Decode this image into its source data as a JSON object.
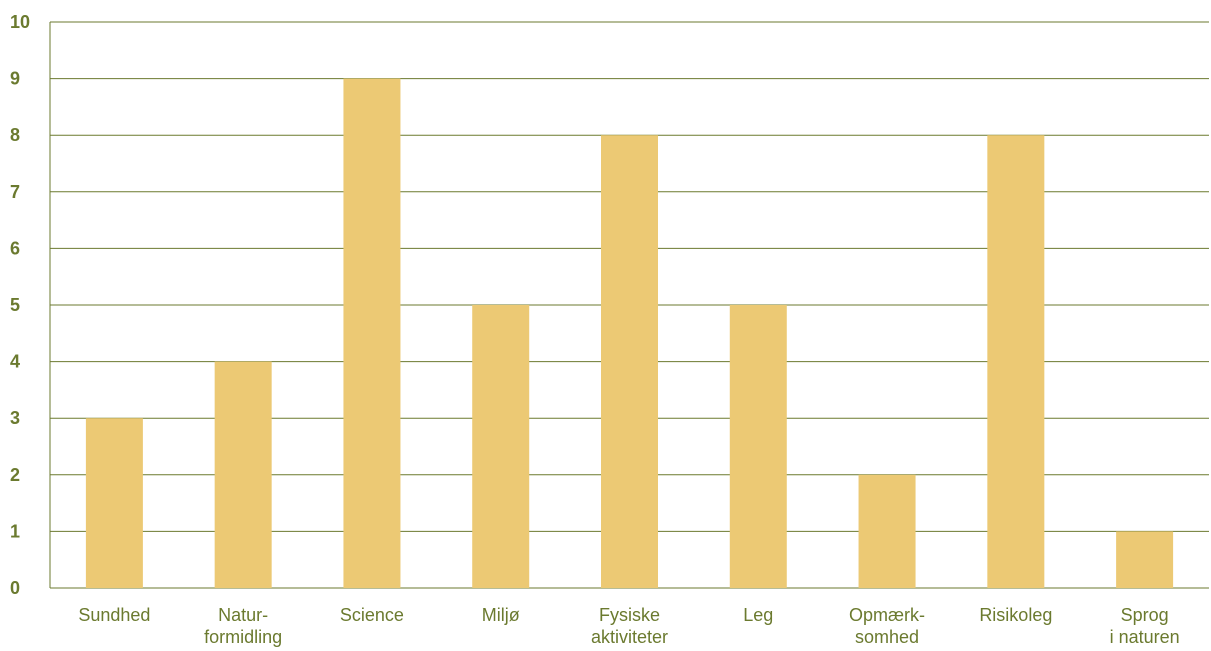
{
  "chart_data": {
    "type": "bar",
    "categories": [
      [
        "Sundhed"
      ],
      [
        "Natur-",
        "formidling"
      ],
      [
        "Science"
      ],
      [
        "Miljø"
      ],
      [
        "Fysiske",
        "aktiviteter"
      ],
      [
        "Leg"
      ],
      [
        "Opmærk-",
        "somhed"
      ],
      [
        "Risikoleg"
      ],
      [
        "Sprog",
        "i naturen"
      ]
    ],
    "values": [
      3,
      4,
      9,
      5,
      8,
      5,
      2,
      8,
      1
    ],
    "yticks": [
      "0",
      "1",
      "2",
      "3",
      "4",
      "5",
      "6",
      "7",
      "8",
      "9",
      "10"
    ],
    "ylim": [
      0,
      10
    ],
    "title": "",
    "xlabel": "",
    "ylabel": "",
    "grid": true,
    "colors": {
      "bar": "#ecc974",
      "grid": "#6b7a2f",
      "text": "#6b7a2f"
    }
  }
}
